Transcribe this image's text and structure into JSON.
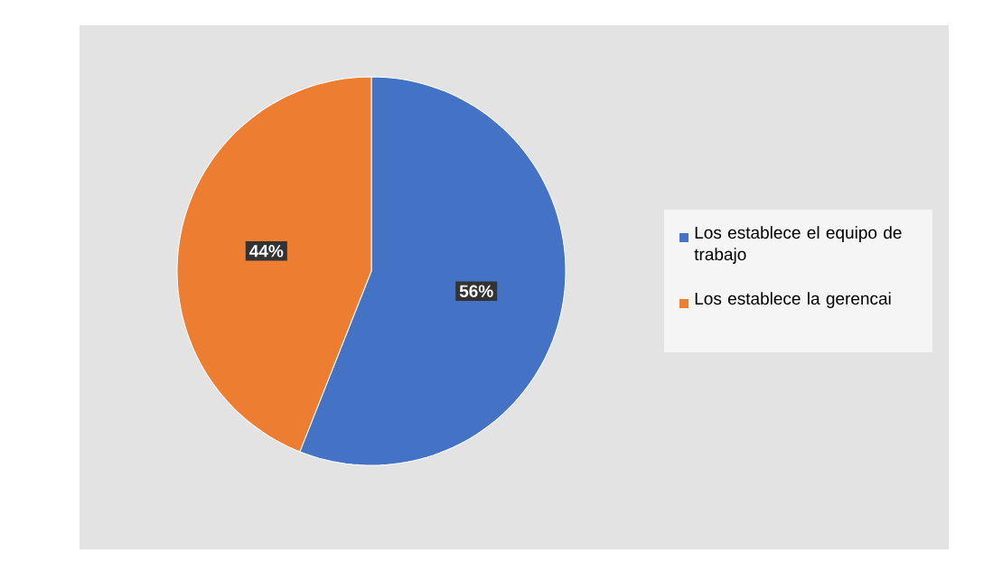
{
  "chart_data": {
    "type": "pie",
    "categories": [
      "Los establece el equipo de trabajo",
      "Los establece la gerencai"
    ],
    "values": [
      56,
      44
    ],
    "colors": [
      "#4472c4",
      "#ed7d31"
    ],
    "value_labels": [
      "56%",
      "44%"
    ],
    "legend": "right"
  }
}
